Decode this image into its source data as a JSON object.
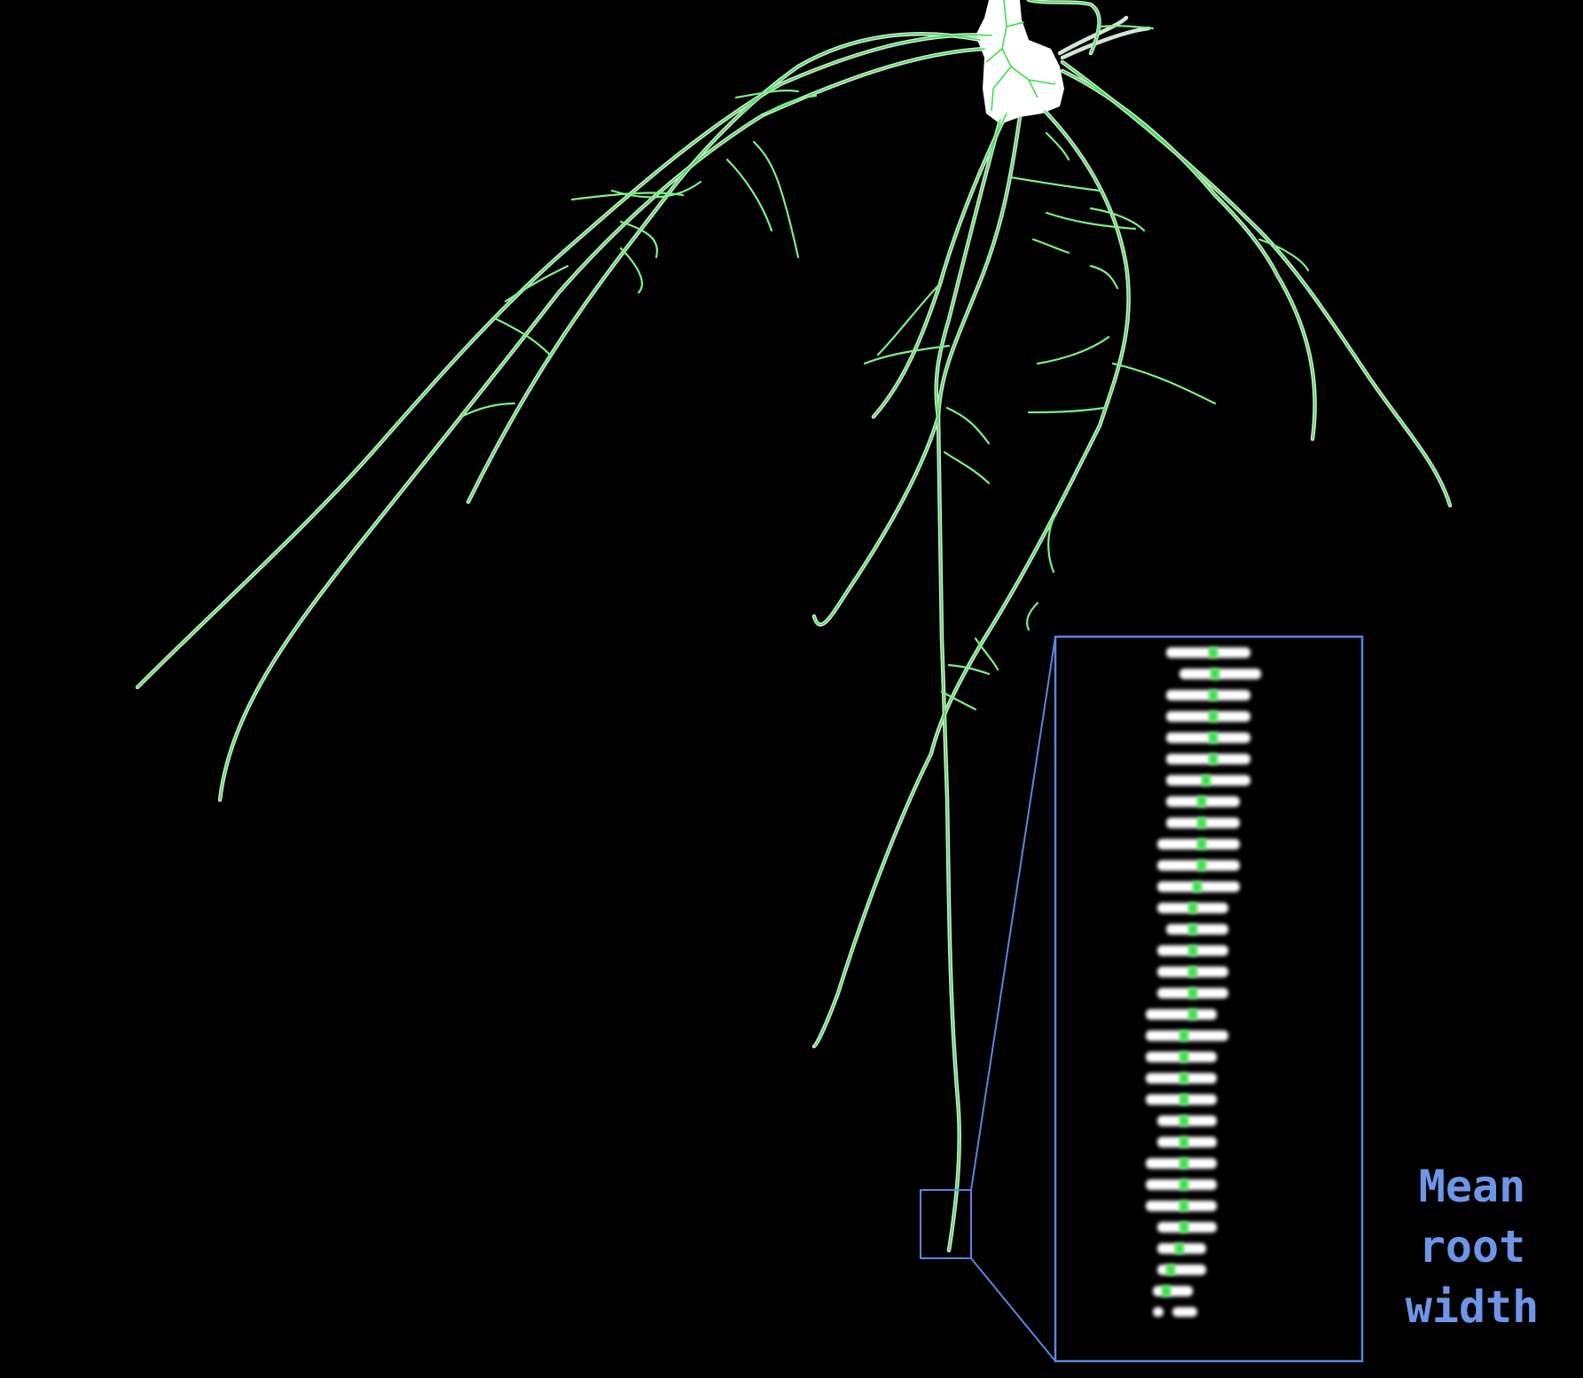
{
  "caption": {
    "line1": "Mean",
    "line2": "root",
    "line3": "width"
  },
  "colors": {
    "background": "#000000",
    "root_fill": "#ffffff",
    "skeleton": "#39e04a",
    "zoom_frame": "#5b85e0",
    "caption": "#6f95e8"
  }
}
